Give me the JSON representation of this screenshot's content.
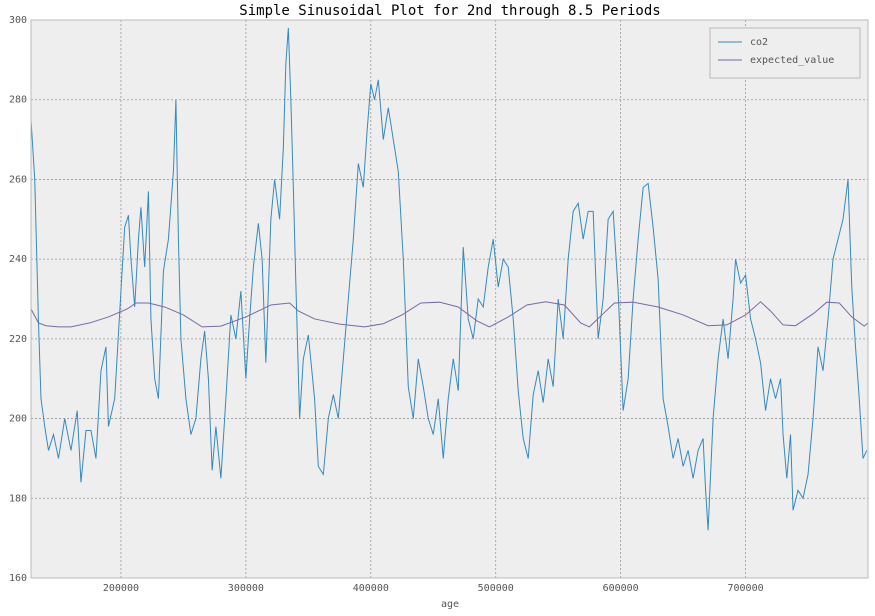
{
  "chart_data": {
    "type": "line",
    "title": "Simple Sinusoidal Plot for 2nd through 8.5 Periods",
    "x_label": "age",
    "xlim": [
      128000,
      798000
    ],
    "xticks": [
      200000,
      300000,
      400000,
      500000,
      600000,
      700000
    ],
    "ylim": [
      160,
      300
    ],
    "yticks": [
      160,
      180,
      200,
      220,
      240,
      260,
      280,
      300
    ],
    "grid": true,
    "legend_position": "upper-right",
    "series": [
      {
        "name": "co2",
        "color": "#348ABD",
        "x": [
          128000,
          131000,
          134000,
          136000,
          139000,
          142000,
          146000,
          150000,
          155000,
          160000,
          165000,
          168000,
          172000,
          176000,
          180000,
          184000,
          188000,
          190000,
          195000,
          200000,
          203000,
          206000,
          208000,
          211000,
          214000,
          216000,
          219000,
          222000,
          224000,
          227000,
          230000,
          234000,
          238000,
          242000,
          244000,
          246000,
          248000,
          252000,
          256000,
          260000,
          264000,
          267000,
          270000,
          273000,
          276000,
          280000,
          284000,
          288000,
          292000,
          296000,
          300000,
          303000,
          306000,
          310000,
          313000,
          316000,
          320000,
          323000,
          327000,
          330000,
          332000,
          334000,
          336000,
          338000,
          340000,
          343000,
          346000,
          350000,
          355000,
          358000,
          362000,
          366000,
          370000,
          374000,
          378000,
          382000,
          386000,
          390000,
          394000,
          397000,
          400000,
          403000,
          406000,
          410000,
          414000,
          418000,
          422000,
          426000,
          430000,
          434000,
          438000,
          442000,
          446000,
          450000,
          454000,
          458000,
          462000,
          466000,
          470000,
          474000,
          478000,
          482000,
          486000,
          490000,
          494000,
          498000,
          502000,
          506000,
          510000,
          514000,
          518000,
          522000,
          526000,
          530000,
          534000,
          538000,
          542000,
          546000,
          550000,
          554000,
          558000,
          562000,
          566000,
          570000,
          574000,
          578000,
          582000,
          586000,
          590000,
          594000,
          598000,
          602000,
          606000,
          610000,
          614000,
          618000,
          622000,
          626000,
          630000,
          634000,
          638000,
          642000,
          646000,
          650000,
          654000,
          658000,
          662000,
          666000,
          668000,
          670000,
          674000,
          678000,
          682000,
          686000,
          690000,
          692000,
          696000,
          700000,
          704000,
          708000,
          712000,
          716000,
          720000,
          724000,
          728000,
          730000,
          733000,
          736000,
          738000,
          742000,
          746000,
          750000,
          754000,
          758000,
          762000,
          766000,
          770000,
          774000,
          778000,
          782000,
          785000,
          788000,
          791000,
          794000,
          797000
        ],
        "values": [
          275,
          260,
          224,
          205,
          198,
          192,
          196,
          190,
          200,
          192,
          202,
          184,
          197,
          197,
          190,
          212,
          218,
          198,
          205,
          232,
          248,
          251,
          240,
          228,
          245,
          253,
          238,
          257,
          225,
          210,
          205,
          237,
          245,
          262,
          280,
          245,
          220,
          205,
          196,
          200,
          215,
          222,
          210,
          187,
          198,
          185,
          205,
          226,
          220,
          232,
          210,
          225,
          238,
          249,
          240,
          214,
          250,
          260,
          250,
          268,
          289,
          298,
          280,
          258,
          234,
          200,
          215,
          221,
          205,
          188,
          186,
          200,
          206,
          200,
          215,
          230,
          245,
          264,
          258,
          272,
          284,
          280,
          285,
          270,
          278,
          270,
          262,
          240,
          208,
          200,
          215,
          208,
          200,
          196,
          205,
          190,
          205,
          215,
          207,
          243,
          225,
          220,
          230,
          228,
          238,
          245,
          233,
          240,
          238,
          225,
          207,
          195,
          190,
          206,
          212,
          204,
          215,
          208,
          230,
          220,
          240,
          252,
          254,
          245,
          252,
          252,
          220,
          230,
          250,
          252,
          232,
          202,
          210,
          230,
          245,
          258,
          259,
          248,
          235,
          205,
          198,
          190,
          195,
          188,
          192,
          185,
          192,
          195,
          182,
          172,
          200,
          215,
          225,
          215,
          230,
          240,
          234,
          236,
          225,
          220,
          214,
          202,
          210,
          205,
          210,
          196,
          185,
          196,
          177,
          182,
          180,
          186,
          200,
          218,
          212,
          225,
          240,
          245,
          250,
          260,
          233,
          218,
          205,
          190,
          192
        ]
      },
      {
        "name": "expected_value",
        "color": "#7A68A6",
        "x": [
          128000,
          134000,
          140000,
          150000,
          160000,
          175000,
          190000,
          205000,
          212000,
          222000,
          235000,
          250000,
          265000,
          280000,
          300000,
          320000,
          335000,
          342000,
          355000,
          375000,
          395000,
          410000,
          425000,
          440000,
          455000,
          470000,
          485000,
          495000,
          510000,
          525000,
          540000,
          555000,
          568000,
          575000,
          585000,
          595000,
          610000,
          630000,
          650000,
          670000,
          685000,
          700000,
          712000,
          720000,
          730000,
          740000,
          755000,
          765000,
          775000,
          785000,
          795000,
          798000
        ],
        "values": [
          227.5,
          224,
          223.3,
          223,
          223,
          224,
          225.5,
          227.5,
          229,
          229,
          228,
          226,
          223,
          223.2,
          225.5,
          228.5,
          229,
          227,
          225,
          223.7,
          223,
          223.8,
          226,
          229,
          229.2,
          228,
          224.5,
          223,
          225.5,
          228.5,
          229.3,
          228.5,
          224,
          223,
          226,
          229,
          229.2,
          228,
          226,
          223.3,
          223.5,
          226,
          229.3,
          227,
          223.5,
          223.3,
          226.5,
          229.2,
          229,
          225.5,
          223.2,
          224
        ]
      }
    ]
  }
}
